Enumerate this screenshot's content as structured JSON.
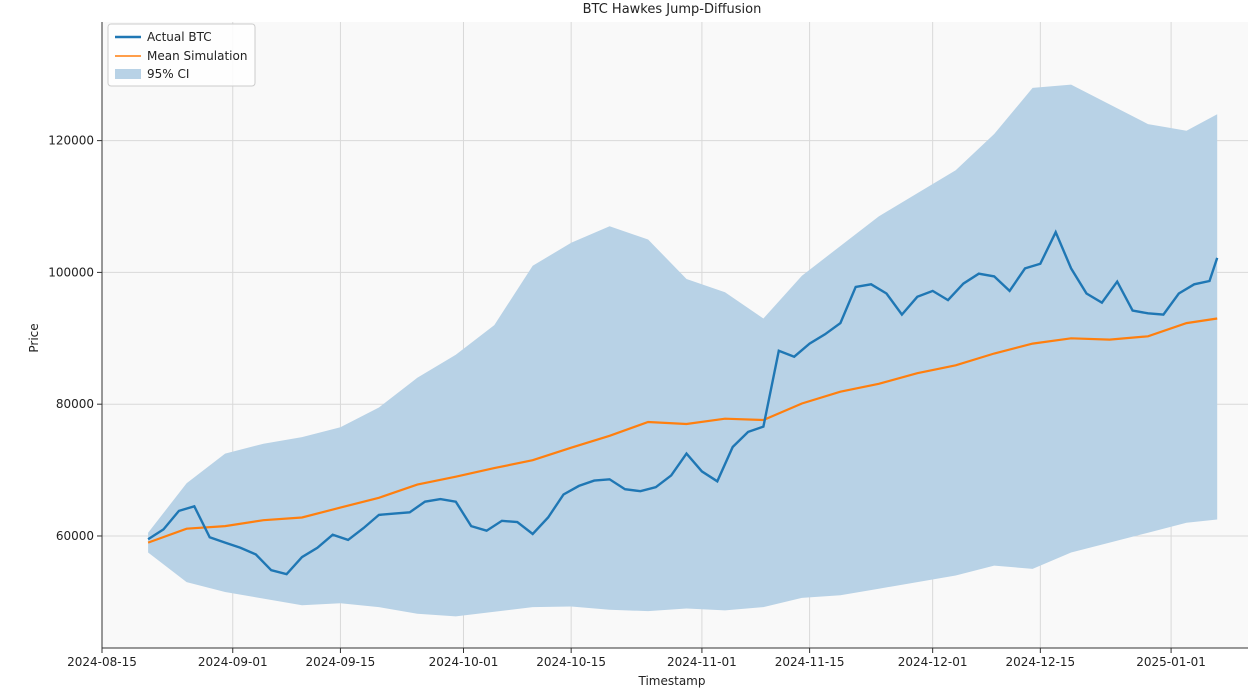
{
  "chart_data": {
    "type": "line",
    "title": "BTC Hawkes Jump-Diffusion",
    "xlabel": "Timestamp",
    "ylabel": "Price",
    "xlim": [
      "2024-08-15",
      "2025-01-11"
    ],
    "ylim": [
      43000,
      138000
    ],
    "x_ticks": [
      "2024-08-15",
      "2024-09-01",
      "2024-09-15",
      "2024-10-01",
      "2024-10-15",
      "2024-11-01",
      "2024-11-15",
      "2024-12-01",
      "2024-12-15",
      "2025-01-01"
    ],
    "y_ticks": [
      60000,
      80000,
      100000,
      120000
    ],
    "grid": true,
    "legend_position": "top-left",
    "colors": {
      "actual": "#1f77b4",
      "mean": "#ff7f0e",
      "ci": "#b8d2e6",
      "plot_bg": "#f9f9f9"
    },
    "legend": [
      "Actual BTC",
      "Mean Simulation",
      "95% CI"
    ],
    "series": [
      {
        "name": "Actual BTC",
        "x": [
          "2024-08-21",
          "2024-08-23",
          "2024-08-25",
          "2024-08-27",
          "2024-08-29",
          "2024-08-31",
          "2024-09-02",
          "2024-09-04",
          "2024-09-06",
          "2024-09-08",
          "2024-09-10",
          "2024-09-12",
          "2024-09-14",
          "2024-09-16",
          "2024-09-18",
          "2024-09-20",
          "2024-09-22",
          "2024-09-24",
          "2024-09-26",
          "2024-09-28",
          "2024-09-30",
          "2024-10-02",
          "2024-10-04",
          "2024-10-06",
          "2024-10-08",
          "2024-10-10",
          "2024-10-12",
          "2024-10-14",
          "2024-10-16",
          "2024-10-18",
          "2024-10-20",
          "2024-10-22",
          "2024-10-24",
          "2024-10-26",
          "2024-10-28",
          "2024-10-30",
          "2024-11-01",
          "2024-11-03",
          "2024-11-05",
          "2024-11-07",
          "2024-11-09",
          "2024-11-11",
          "2024-11-13",
          "2024-11-15",
          "2024-11-17",
          "2024-11-19",
          "2024-11-21",
          "2024-11-23",
          "2024-11-25",
          "2024-11-27",
          "2024-11-29",
          "2024-12-01",
          "2024-12-03",
          "2024-12-05",
          "2024-12-07",
          "2024-12-09",
          "2024-12-11",
          "2024-12-13",
          "2024-12-15",
          "2024-12-17",
          "2024-12-19",
          "2024-12-21",
          "2024-12-23",
          "2024-12-25",
          "2024-12-27",
          "2024-12-29",
          "2024-12-31",
          "2025-01-02",
          "2025-01-04",
          "2025-01-06",
          "2025-01-07"
        ],
        "y": [
          59500,
          61000,
          63800,
          64500,
          59800,
          59000,
          58200,
          57200,
          54800,
          54200,
          56800,
          58200,
          60200,
          59400,
          61200,
          63200,
          63400,
          63600,
          65200,
          65600,
          65200,
          61500,
          60800,
          62300,
          62100,
          60300,
          62800,
          66300,
          67600,
          68400,
          68600,
          67100,
          66800,
          67400,
          69200,
          72500,
          69800,
          68300,
          73500,
          75800,
          76600,
          88100,
          87200,
          89200,
          90600,
          92300,
          97800,
          98200,
          96800,
          93600,
          96300,
          97200,
          95800,
          98300,
          99800,
          99400,
          97200,
          100600,
          101300,
          106100,
          100600,
          96800,
          95400,
          98600,
          94200,
          93800,
          93600,
          96800,
          98200,
          98700,
          102200
        ]
      },
      {
        "name": "Mean Simulation",
        "x": [
          "2024-08-21",
          "2024-08-26",
          "2024-08-31",
          "2024-09-05",
          "2024-09-10",
          "2024-09-15",
          "2024-09-20",
          "2024-09-25",
          "2024-09-30",
          "2024-10-05",
          "2024-10-10",
          "2024-10-15",
          "2024-10-20",
          "2024-10-25",
          "2024-10-30",
          "2024-11-04",
          "2024-11-09",
          "2024-11-14",
          "2024-11-19",
          "2024-11-24",
          "2024-11-29",
          "2024-12-04",
          "2024-12-09",
          "2024-12-14",
          "2024-12-19",
          "2024-12-24",
          "2024-12-29",
          "2025-01-03",
          "2025-01-07"
        ],
        "y": [
          59000,
          61100,
          61500,
          62400,
          62800,
          64300,
          65800,
          67800,
          69000,
          70300,
          71500,
          73400,
          75200,
          77300,
          77000,
          77800,
          77600,
          80100,
          81900,
          83100,
          84700,
          85900,
          87700,
          89200,
          90000,
          89800,
          90300,
          92300,
          93000
        ]
      },
      {
        "name": "95% CI",
        "x": [
          "2024-08-21",
          "2024-08-26",
          "2024-08-31",
          "2024-09-05",
          "2024-09-10",
          "2024-09-15",
          "2024-09-20",
          "2024-09-25",
          "2024-09-30",
          "2024-10-05",
          "2024-10-10",
          "2024-10-15",
          "2024-10-20",
          "2024-10-25",
          "2024-10-30",
          "2024-11-04",
          "2024-11-09",
          "2024-11-14",
          "2024-11-19",
          "2024-11-24",
          "2024-11-29",
          "2024-12-04",
          "2024-12-09",
          "2024-12-14",
          "2024-12-19",
          "2024-12-24",
          "2024-12-29",
          "2025-01-03",
          "2025-01-07"
        ],
        "upper": [
          60500,
          68000,
          72500,
          74000,
          75000,
          76500,
          79500,
          84000,
          87500,
          92000,
          101000,
          104500,
          107000,
          105000,
          99000,
          97000,
          93000,
          99500,
          104000,
          108500,
          112000,
          115500,
          121000,
          128000,
          128500,
          125500,
          122500,
          121500,
          124000
        ],
        "lower": [
          57500,
          53000,
          51500,
          50500,
          49500,
          49800,
          49200,
          48200,
          47800,
          48500,
          49200,
          49300,
          48800,
          48600,
          49000,
          48700,
          49200,
          50600,
          51000,
          52000,
          53000,
          54000,
          55500,
          55000,
          57500,
          59000,
          60500,
          62000,
          62500
        ]
      }
    ]
  }
}
